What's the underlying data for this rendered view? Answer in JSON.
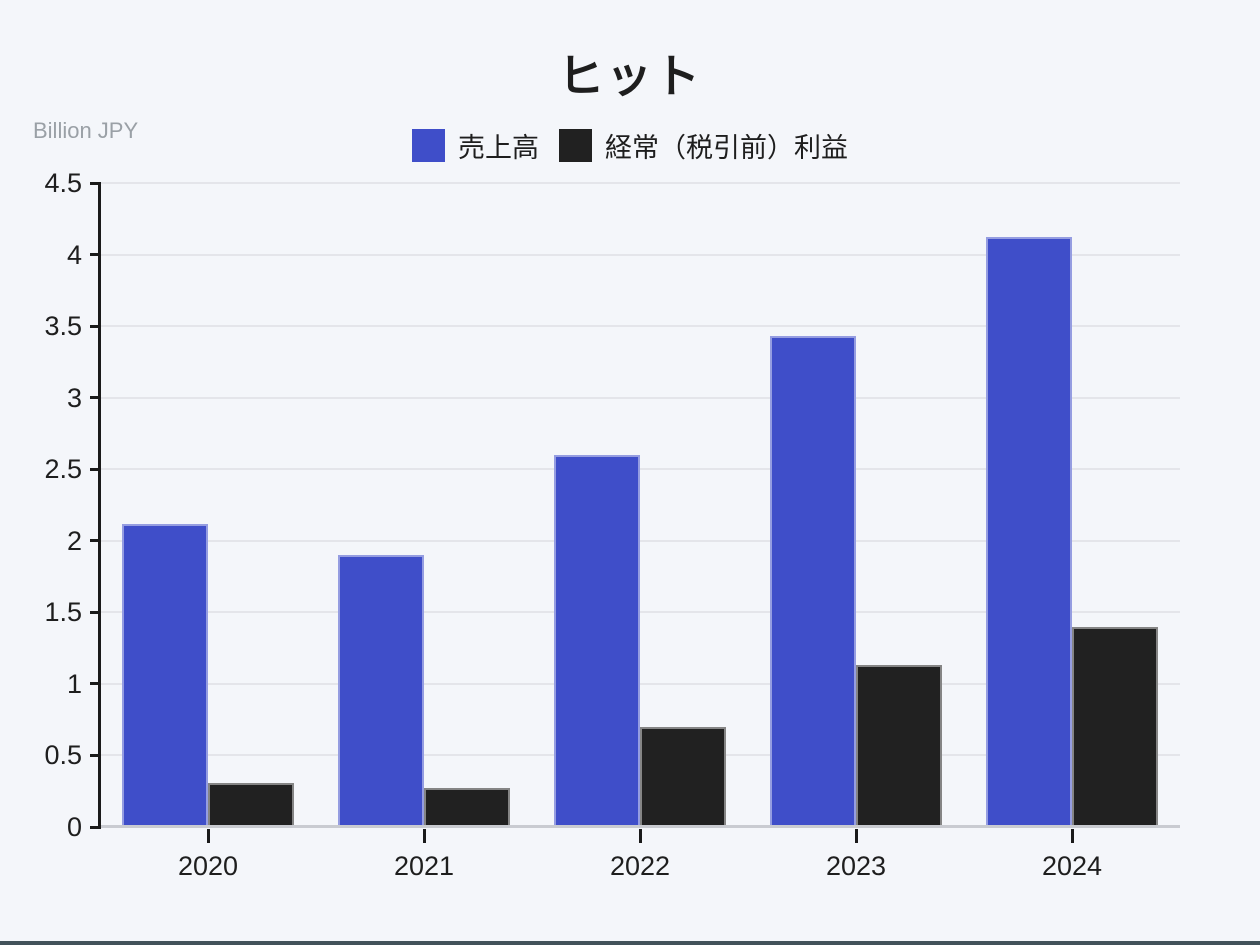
{
  "colors": {
    "background": "#f4f6fa",
    "grid": "#e4e5ea",
    "axis": "#1a1a1a",
    "baseline": "#c9cbd1",
    "text": "#1e1e1e",
    "muted_text": "#9aa0a6",
    "bottom_strip": "#42525a",
    "series_blue": "#3f4ec9",
    "series_black": "#212121"
  },
  "chart_data": {
    "type": "bar",
    "title": "ヒット",
    "unit_label": "Billion JPY",
    "categories": [
      "2020",
      "2021",
      "2022",
      "2023",
      "2024"
    ],
    "series": [
      {
        "name": "売上高",
        "color": "#3f4ec9",
        "values": [
          2.12,
          1.9,
          2.6,
          3.43,
          4.12
        ]
      },
      {
        "name": "経常（税引前）利益",
        "color": "#212121",
        "values": [
          0.31,
          0.27,
          0.7,
          1.13,
          1.4
        ]
      }
    ],
    "xlabel": "",
    "ylabel": "Billion JPY",
    "ylim": [
      0,
      4.5
    ],
    "ytick_step": 0.5,
    "grid": true,
    "legend_position": "top"
  }
}
